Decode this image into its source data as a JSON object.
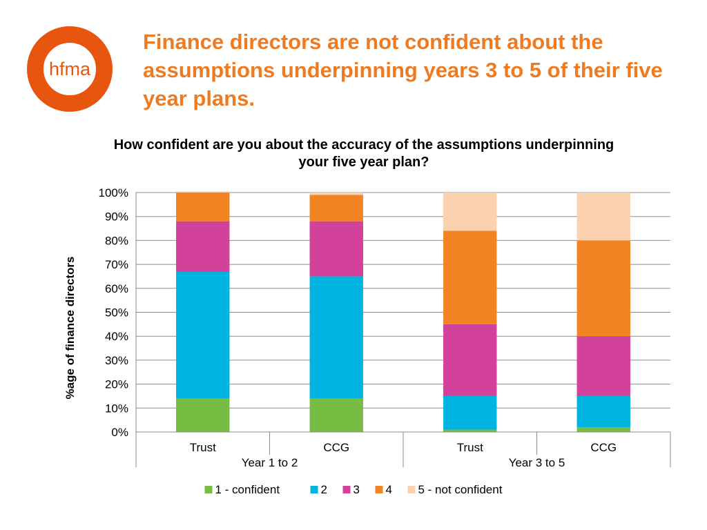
{
  "logo": {
    "text": "hfma",
    "color": "#e8550e"
  },
  "headline": "Finance directors are not confident about the assumptions underpinning years 3 to 5 of their five year plans.",
  "chart_data": {
    "type": "bar",
    "stacked": true,
    "title": "How confident are you about the accuracy of the assumptions underpinning your five year plan?",
    "ylabel": "%age of finance directors",
    "ylim": [
      0,
      100
    ],
    "yticks": [
      "0%",
      "10%",
      "20%",
      "30%",
      "40%",
      "50%",
      "60%",
      "70%",
      "80%",
      "90%",
      "100%"
    ],
    "grid": true,
    "legend_position": "bottom",
    "groups": [
      {
        "label": "Year 1 to 2",
        "categories": [
          "Trust",
          "CCG"
        ]
      },
      {
        "label": "Year 3 to 5",
        "categories": [
          "Trust",
          "CCG"
        ]
      }
    ],
    "categories": [
      "Trust",
      "CCG",
      "Trust",
      "CCG"
    ],
    "series": [
      {
        "name": "1 - confident",
        "color": "#77bd43",
        "values": [
          14,
          14,
          1,
          2
        ]
      },
      {
        "name": "2",
        "color": "#00b4e2",
        "values": [
          53,
          51,
          14,
          13
        ]
      },
      {
        "name": "3",
        "color": "#d2419a",
        "values": [
          21,
          23,
          30,
          25
        ]
      },
      {
        "name": "4",
        "color": "#f28423",
        "values": [
          12,
          11,
          39,
          40
        ]
      },
      {
        "name": "5 - not confident",
        "color": "#fbd2af",
        "values": [
          0.5,
          1,
          16,
          20
        ]
      }
    ]
  }
}
